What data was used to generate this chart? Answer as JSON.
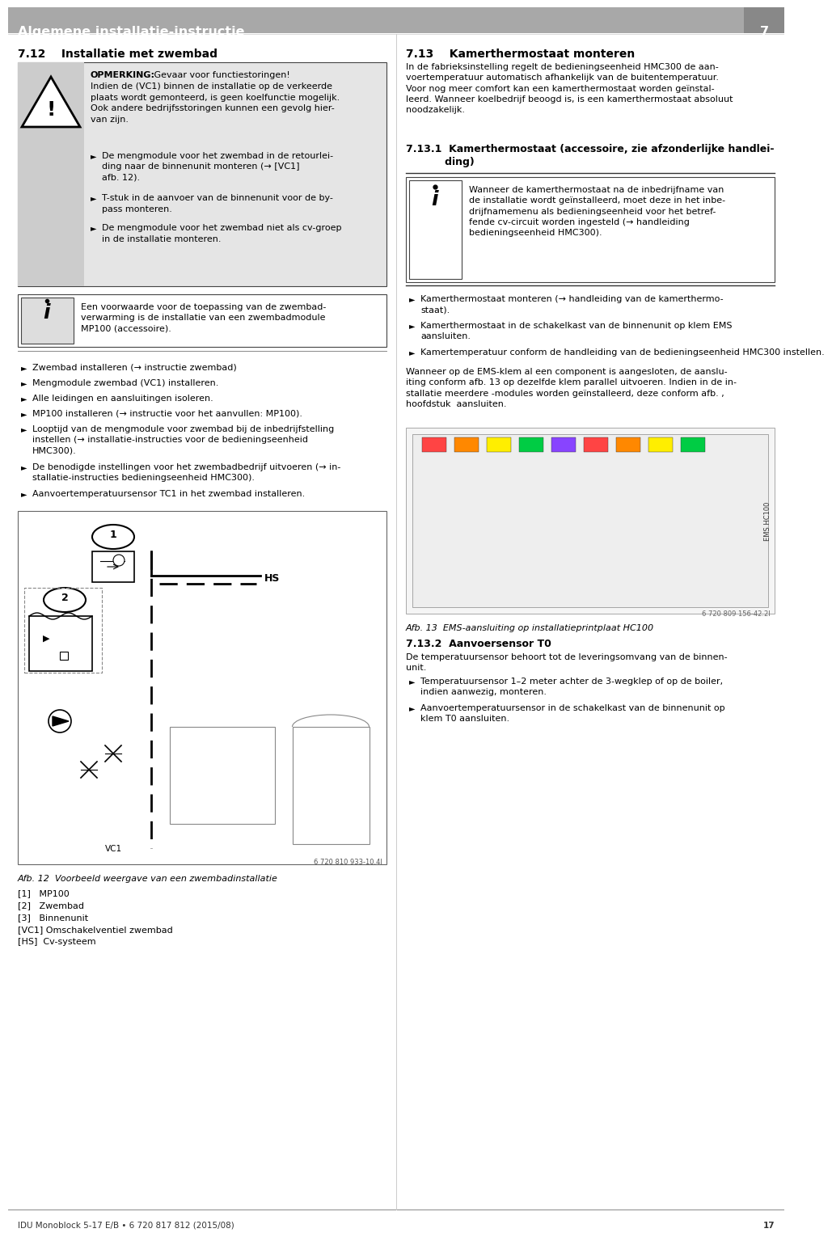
{
  "page_bg": "#ffffff",
  "header_bg": "#aaaaaa",
  "header_text": "Algemene installatie-instructie",
  "header_number": "7",
  "section712_title": "7.12    Installatie met zwembad",
  "section713_title": "7.13    Kamerthermostaat monteren",
  "warning_line1_bold": "OPMERKING:",
  "warning_line1_rest": " Gevaar voor functiestoringen!",
  "warning_body": "Indien de (VC1) binnen de installatie op de verkeerde\nplaats wordt gemonteerd, is geen koelfunctie mogelijk.\nOok andere bedrijfsstoringen kunnen een gevolg hier-\nvan zijn.",
  "warning_bullets": [
    "De mengmodule voor het zwembad in de retourlei-\nding naar de binnenunit monteren (→ [VC1]\nafb. 12).",
    "T-stuk in de aanvoer van de binnenunit voor de by-\npass monteren.",
    "De mengmodule voor het zwembad niet als cv-groep\nin de installatie monteren."
  ],
  "info_text": "Een voorwaarde voor de toepassing van de zwembad-\nverwarming is de installatie van een zwembadmodule\nMP100 (accessoire).",
  "bullets_main": [
    "Zwembad installeren (→ instructie zwembad)",
    "Mengmodule zwembad (VC1) installeren.",
    "Alle leidingen en aansluitingen isoleren.",
    "MP100 installeren (→ instructie voor het aanvullen: MP100).",
    "Looptijd van de mengmodule voor zwembad bij de inbedrijfstelling\ninstellen (→ installatie-instructies voor de bedieningseenheid\nHMC300).",
    "De benodigde instellingen voor het zwembadbedrijf uitvoeren (→ in-\nstallatie-instructies bedieningseenheid HMC300).",
    "Aanvoertemperatuursensor TC1 in het zwembad installeren."
  ],
  "fig12_caption": "Afb. 12  Voorbeeld weergave van een zwembadinstallatie",
  "fig12_labels": [
    "[1]   MP100",
    "[2]   Zwembad",
    "[3]   Binnenunit",
    "[VC1] Omschakelventiel zwembad",
    "[HS]  Cv-systeem"
  ],
  "fig12_code": "6 720 810 933-10.4I",
  "section713_text1": "In de fabrieksinstelling regelt de bedieningseenheid HMC300 de aan-\nvoertemperatuur automatisch afhankelijk van de buitentemperatuur.\nVoor nog meer comfort kan een kamerthermostaat worden geïnstal-\nleerd. Wanneer koelbedrijf beoogd is, is een kamerthermostaat absoluut\nnoodzakelijk.",
  "section7131_title": "7.13.1  Kamerthermostaat (accessoire, zie afzonderlijke handlei-\n           ding)",
  "info_right_text": "Wanneer de kamerthermostaat na de inbedrijfname van\nde installatie wordt geïnstalleerd, moet deze in het inbe-\ndrijfnamemenu als bedieningseenheid voor het betref-\nfende cv-circuit worden ingesteld (→ handleiding\nbedieningseenheid HMC300).",
  "bullets_right": [
    "Kamerthermostaat monteren (→ handleiding van de kamerthermo-\nstaat).",
    "Kamerthermostaat in de schakelkast van de binnenunit op klem EMS\naansluiten.",
    "Kamertemperatuur conform de handleiding van de bedieningseenheid HMC300 instellen."
  ],
  "right_mid_text": "Wanneer op de EMS-klem al een component is aangesloten, de aanslu-\niting conform afb. 13 op dezelfde klem parallel uitvoeren. Indien in de in-\nstallatie meerdere -modules worden geïnstalleerd, deze conform afb. ,\nhoofdstuk  aansluiten.",
  "fig13_caption": "Afb. 13  EMS-aansluiting op installatieprintplaat HC100",
  "fig13_code": "6 720 809 156-42.2I",
  "section7132_title": "7.13.2  Aanvoersensor T0",
  "section7132_text": "De temperatuursensor behoort tot de leveringsomvang van de binnen-\nunit.",
  "bullets_right2": [
    "Temperatuursensor 1–2 meter achter de 3-wegklep of op de boiler,\nindien aanwezig, monteren.",
    "Aanvoertemperatuursensor in de schakelkast van de binnenunit op\nklem T0 aansluiten."
  ],
  "footer_text": "IDU Monoblock 5-17 E/B • 6 720 817 812 (2015/08)",
  "footer_page": "17"
}
